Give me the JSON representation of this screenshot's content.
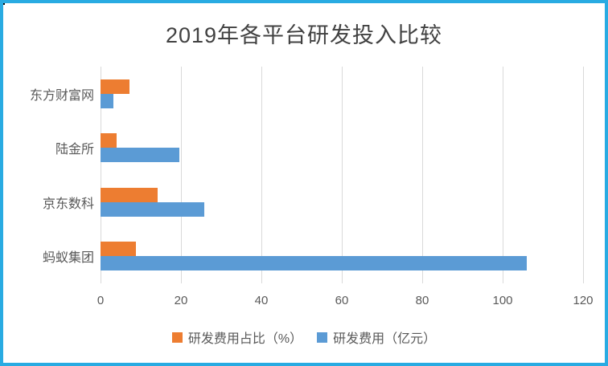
{
  "frame": {
    "border_color": "#29ABE2",
    "background": "#ffffff"
  },
  "chart_data": {
    "type": "bar",
    "orientation": "horizontal",
    "title": "2019年各平台研发投入比较",
    "title_color": "#414141",
    "categories": [
      "东方财富网",
      "陆金所",
      "京东数科",
      "蚂蚁集团"
    ],
    "series": [
      {
        "name": "研发费用占比（%）",
        "color": "#ED7D31",
        "values": [
          7.2,
          4,
          14.1,
          8.8
        ]
      },
      {
        "name": "研发费用（亿元）",
        "color": "#5B9BD5",
        "values": [
          3.1,
          19.5,
          25.7,
          106
        ]
      }
    ],
    "xlabel": "",
    "ylabel": "",
    "xlim": [
      0,
      120
    ],
    "x_ticks": [
      0,
      20,
      40,
      60,
      80,
      100,
      120
    ],
    "grid": true,
    "gridline_color": "#D9D9D9",
    "label_color": "#595959",
    "legend_position": "bottom"
  }
}
